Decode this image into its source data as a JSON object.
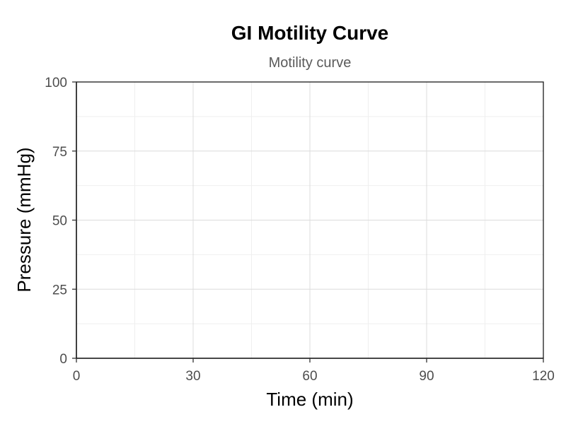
{
  "chart_data": {
    "type": "line",
    "title": "GI Motility Curve",
    "subtitle": "Motility curve",
    "xlabel": "Time (min)",
    "ylabel": "Pressure (mmHg)",
    "xlim": [
      0,
      120
    ],
    "ylim": [
      0,
      100
    ],
    "x_ticks": [
      0,
      30,
      60,
      90,
      120
    ],
    "y_ticks": [
      0,
      25,
      50,
      75,
      100
    ],
    "x_minor_ticks": [
      15,
      45,
      75,
      105
    ],
    "y_minor_ticks": [
      12.5,
      37.5,
      62.5,
      87.5
    ],
    "grid": true,
    "series": [],
    "colors": {
      "grid_major": "#dcdcdc",
      "grid_minor": "#efefef",
      "axis": "#000000",
      "tick_label": "#4d4d4d",
      "subtitle": "#5a5a5a"
    }
  }
}
